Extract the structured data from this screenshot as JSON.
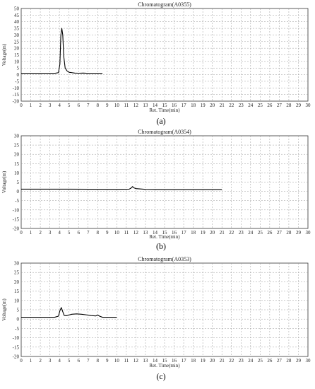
{
  "chart_data": [
    {
      "type": "line",
      "title": "Chromatogram(A0355)",
      "xlabel": "Ret. Time(min)",
      "ylabel": "Voltage(m)",
      "caption": "(a)",
      "xlim": [
        0,
        30
      ],
      "ylim": [
        -20,
        50
      ],
      "xticks": [
        0,
        1,
        2,
        3,
        4,
        5,
        6,
        7,
        8,
        9,
        10,
        11,
        12,
        13,
        14,
        15,
        16,
        17,
        18,
        19,
        20,
        21,
        22,
        23,
        24,
        25,
        26,
        27,
        28,
        29,
        30
      ],
      "yticks": [
        50,
        45,
        40,
        35,
        30,
        25,
        20,
        15,
        10,
        5,
        0,
        -5,
        -10,
        -15,
        -20
      ],
      "grid": true,
      "series": [
        {
          "color": "#000000",
          "x": [
            0,
            3.5,
            3.9,
            4.05,
            4.15,
            4.25,
            4.35,
            4.45,
            4.6,
            4.8,
            5.0,
            5.3,
            5.6,
            6.0,
            6.5,
            7.0,
            7.5,
            8.0,
            8.5
          ],
          "y": [
            1,
            1,
            1.5,
            8,
            30,
            35,
            30,
            14,
            5,
            2.8,
            1.8,
            1.5,
            1.2,
            1.1,
            1.2,
            1.0,
            1.0,
            1.0,
            1.0
          ]
        }
      ]
    },
    {
      "type": "line",
      "title": "Chromatogram(A0354)",
      "xlabel": "Ret. Time(min)",
      "ylabel": "Voltage(m)",
      "caption": "(b)",
      "xlim": [
        0,
        30
      ],
      "ylim": [
        -20,
        30
      ],
      "xticks": [
        0,
        1,
        2,
        3,
        4,
        5,
        6,
        7,
        8,
        9,
        10,
        11,
        12,
        13,
        14,
        15,
        16,
        17,
        18,
        19,
        20,
        21,
        22,
        23,
        24,
        25,
        26,
        27,
        28,
        29,
        30
      ],
      "yticks": [
        30,
        25,
        20,
        15,
        10,
        5,
        0,
        -5,
        -10,
        -15,
        -20
      ],
      "grid": true,
      "series": [
        {
          "color": "#000000",
          "x": [
            0,
            5,
            10,
            11.3,
            11.5,
            11.65,
            11.8,
            12.0,
            12.5,
            13,
            15,
            18,
            21
          ],
          "y": [
            1.2,
            1.2,
            1.1,
            1.2,
            1.8,
            2.6,
            1.9,
            1.5,
            1.3,
            1.1,
            1.0,
            1.0,
            1.0
          ]
        }
      ]
    },
    {
      "type": "line",
      "title": "Chromatogram(A0353)",
      "xlabel": "Ret. Time(min)",
      "ylabel": "Voltage(m)",
      "caption": "(c)",
      "xlim": [
        0,
        30
      ],
      "ylim": [
        -20,
        30
      ],
      "xticks": [
        0,
        1,
        2,
        3,
        4,
        5,
        6,
        7,
        8,
        9,
        10,
        11,
        12,
        13,
        14,
        15,
        16,
        17,
        18,
        19,
        20,
        21,
        22,
        23,
        24,
        25,
        26,
        27,
        28,
        29,
        30
      ],
      "yticks": [
        30,
        25,
        20,
        15,
        10,
        5,
        0,
        -5,
        -10,
        -15,
        -20
      ],
      "grid": true,
      "series": [
        {
          "color": "#000000",
          "x": [
            0,
            3.5,
            3.9,
            4.05,
            4.2,
            4.35,
            4.5,
            4.7,
            5.0,
            5.3,
            5.8,
            6.3,
            6.8,
            7.3,
            7.8,
            8.0,
            8.2,
            8.5,
            9.0,
            10.0
          ],
          "y": [
            1,
            1,
            1.6,
            4.5,
            6.2,
            4,
            2.0,
            1.8,
            2.2,
            2.6,
            2.8,
            2.6,
            2.3,
            1.9,
            1.7,
            2.2,
            1.6,
            1.0,
            1.0,
            1.0
          ]
        }
      ]
    }
  ]
}
